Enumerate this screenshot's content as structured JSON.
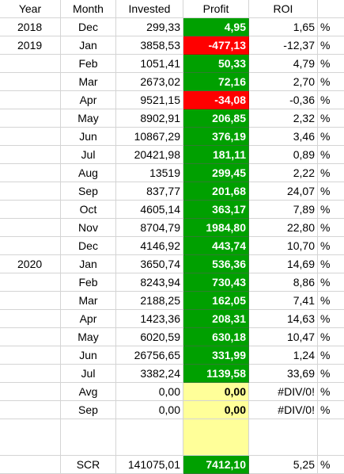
{
  "headers": {
    "year": "Year",
    "month": "Month",
    "invested": "Invested",
    "profit": "Profit",
    "roi": "ROI"
  },
  "rows": [
    {
      "year": "2018",
      "month": "Dec",
      "invested": "299,33",
      "profit": "4,95",
      "roi": "1,65",
      "pct": "%",
      "fill": "green"
    },
    {
      "year": "2019",
      "month": "Jan",
      "invested": "3858,53",
      "profit": "-477,13",
      "roi": "-12,37",
      "pct": "%",
      "fill": "red"
    },
    {
      "year": "",
      "month": "Feb",
      "invested": "1051,41",
      "profit": "50,33",
      "roi": "4,79",
      "pct": "%",
      "fill": "green"
    },
    {
      "year": "",
      "month": "Mar",
      "invested": "2673,02",
      "profit": "72,16",
      "roi": "2,70",
      "pct": "%",
      "fill": "green"
    },
    {
      "year": "",
      "month": "Apr",
      "invested": "9521,15",
      "profit": "-34,08",
      "roi": "-0,36",
      "pct": "%",
      "fill": "red"
    },
    {
      "year": "",
      "month": "May",
      "invested": "8902,91",
      "profit": "206,85",
      "roi": "2,32",
      "pct": "%",
      "fill": "green"
    },
    {
      "year": "",
      "month": "Jun",
      "invested": "10867,29",
      "profit": "376,19",
      "roi": "3,46",
      "pct": "%",
      "fill": "green"
    },
    {
      "year": "",
      "month": "Jul",
      "invested": "20421,98",
      "profit": "181,11",
      "roi": "0,89",
      "pct": "%",
      "fill": "green"
    },
    {
      "year": "",
      "month": "Aug",
      "invested": "13519",
      "profit": "299,45",
      "roi": "2,22",
      "pct": "%",
      "fill": "green"
    },
    {
      "year": "",
      "month": "Sep",
      "invested": "837,77",
      "profit": "201,68",
      "roi": "24,07",
      "pct": "%",
      "fill": "green"
    },
    {
      "year": "",
      "month": "Oct",
      "invested": "4605,14",
      "profit": "363,17",
      "roi": "7,89",
      "pct": "%",
      "fill": "green"
    },
    {
      "year": "",
      "month": "Nov",
      "invested": "8704,79",
      "profit": "1984,80",
      "roi": "22,80",
      "pct": "%",
      "fill": "green"
    },
    {
      "year": "",
      "month": "Dec",
      "invested": "4146,92",
      "profit": "443,74",
      "roi": "10,70",
      "pct": "%",
      "fill": "green"
    },
    {
      "year": "2020",
      "month": "Jan",
      "invested": "3650,74",
      "profit": "536,36",
      "roi": "14,69",
      "pct": "%",
      "fill": "green"
    },
    {
      "year": "",
      "month": "Feb",
      "invested": "8243,94",
      "profit": "730,43",
      "roi": "8,86",
      "pct": "%",
      "fill": "green"
    },
    {
      "year": "",
      "month": "Mar",
      "invested": "2188,25",
      "profit": "162,05",
      "roi": "7,41",
      "pct": "%",
      "fill": "green"
    },
    {
      "year": "",
      "month": "Apr",
      "invested": "1423,36",
      "profit": "208,31",
      "roi": "14,63",
      "pct": "%",
      "fill": "green"
    },
    {
      "year": "",
      "month": "May",
      "invested": "6020,59",
      "profit": "630,18",
      "roi": "10,47",
      "pct": "%",
      "fill": "green"
    },
    {
      "year": "",
      "month": "Jun",
      "invested": "26756,65",
      "profit": "331,99",
      "roi": "1,24",
      "pct": "%",
      "fill": "green"
    },
    {
      "year": "",
      "month": "Jul",
      "invested": "3382,24",
      "profit": "1139,58",
      "roi": "33,69",
      "pct": "%",
      "fill": "green"
    },
    {
      "year": "",
      "month": "Avg",
      "invested": "0,00",
      "profit": "0,00",
      "roi": "#DIV/0!",
      "pct": "%",
      "fill": "yellow"
    },
    {
      "year": "",
      "month": "Sep",
      "invested": "0,00",
      "profit": "0,00",
      "roi": "#DIV/0!",
      "pct": "%",
      "fill": "yellow"
    },
    {
      "year": "",
      "month": "",
      "invested": "",
      "profit": "",
      "roi": "",
      "pct": "",
      "fill": "yellow",
      "tall": true
    }
  ],
  "total": {
    "label": "SCR",
    "invested": "141075,01",
    "profit": "7412,10",
    "roi": "5,25",
    "pct": "%",
    "fill": "green"
  },
  "colors": {
    "green": "#00a000",
    "red": "#ff0000",
    "yellow": "#ffff99"
  }
}
